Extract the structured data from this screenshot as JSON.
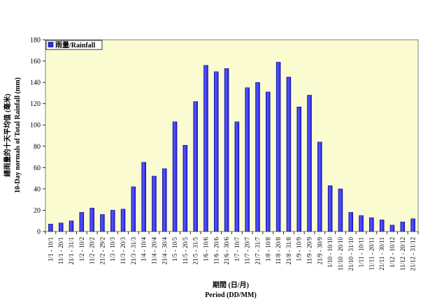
{
  "chart_data": {
    "type": "bar",
    "title": "",
    "xlabel_line1": "期間 (日/月)",
    "xlabel_line2": "Period (DD/MM)",
    "ylabel_line1": "總雨量的十天平均值 (毫米)",
    "ylabel_line2": "10-Day normals of Total Rainfall (mm)",
    "ylim": [
      0,
      180
    ],
    "yticks": [
      0,
      20,
      40,
      60,
      80,
      100,
      120,
      140,
      160,
      180
    ],
    "grid": false,
    "legend_position": "top-left",
    "plot_background": "#fbfbd2",
    "categories": [
      "1/1 - 10/1",
      "11/1 - 20/1",
      "21/1 - 31/1",
      "1/2 - 10/2",
      "11/2 - 20/2",
      "21/2 - 29/2",
      "1/3 - 10/3",
      "11/3 - 20/3",
      "21/3 - 31/3",
      "1/4 - 10/4",
      "11/4 - 20/4",
      "21/4 - 30/4",
      "1/5 - 10/5",
      "11/5 - 20/5",
      "21/5 - 31/5",
      "1/6 - 10/6",
      "11/6 - 20/6",
      "21/6 - 30/6",
      "1/7 - 10/7",
      "11/7 - 20/7",
      "21/7 - 31/7",
      "1/8 - 10/8",
      "11/8 - 20/8",
      "21/8 - 31/8",
      "1/9 - 10/9",
      "11/9 - 20/9",
      "21/9 - 30/9",
      "1/10 - 10/10",
      "11/10 - 20/10",
      "21/10 - 31/10",
      "1/11 - 10/11",
      "11/11 - 20/11",
      "21/11 - 30/11",
      "1/12 - 10/12",
      "11/12 - 20/12",
      "21/12 - 31/12"
    ],
    "series": [
      {
        "name": "雨量/Rainfall",
        "color": "#2b2bff",
        "values": [
          7,
          8,
          10,
          18,
          22,
          16,
          20,
          21,
          42,
          65,
          52,
          59,
          103,
          81,
          122,
          156,
          150,
          153,
          103,
          135,
          140,
          131,
          159,
          145,
          117,
          128,
          84,
          43,
          40,
          18,
          15,
          13,
          11,
          6,
          9,
          12
        ]
      }
    ]
  }
}
